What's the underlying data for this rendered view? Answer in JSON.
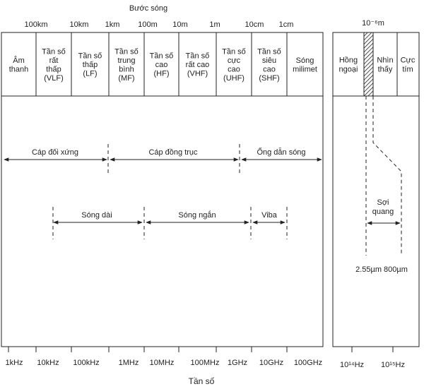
{
  "title_top": "Bước sóng",
  "wavelength_ticks": [
    "100km",
    "10km",
    "1km",
    "100m",
    "10m",
    "1m",
    "10cm",
    "1cm"
  ],
  "wavelength_right": "10⁻⁶m",
  "bands": [
    [
      "Âm",
      "thanh"
    ],
    [
      "Tần số",
      "rất",
      "thấp",
      "(VLF)"
    ],
    [
      "Tần số",
      "thấp",
      "(LF)"
    ],
    [
      "Tần số",
      "trung",
      "bình",
      "(MF)"
    ],
    [
      "Tần số",
      "cao",
      "(HF)"
    ],
    [
      "Tần số",
      "rất cao",
      "(VHF)"
    ],
    [
      "Tần số",
      "cực",
      "cao",
      "(UHF)"
    ],
    [
      "Tần số",
      "siêu",
      "cao",
      "(SHF)"
    ],
    [
      "Sóng",
      "milimet"
    ]
  ],
  "optical_bands": [
    [
      "Hồng",
      "ngoại"
    ],
    [
      "Nhìn",
      "thấy"
    ],
    [
      "Cực",
      "tím"
    ]
  ],
  "media_row1": [
    "Cáp đối xứng",
    "Cáp đồng trục",
    "Ống dẫn sóng"
  ],
  "media_row2": [
    "Sóng dài",
    "Sóng ngắn",
    "Viba"
  ],
  "fiber_label": [
    "Sợi",
    "quang"
  ],
  "fiber_wavelengths": "2.55µm 800µm",
  "freq_ticks": [
    "1kHz",
    "10kHz",
    "100kHz",
    "1MHz",
    "10MHz",
    "100MHz",
    "1GHz",
    "10GHz",
    "100GHz"
  ],
  "freq_right": [
    "10¹⁴Hz",
    "10¹⁵Hz"
  ],
  "xlabel": "Tần số"
}
